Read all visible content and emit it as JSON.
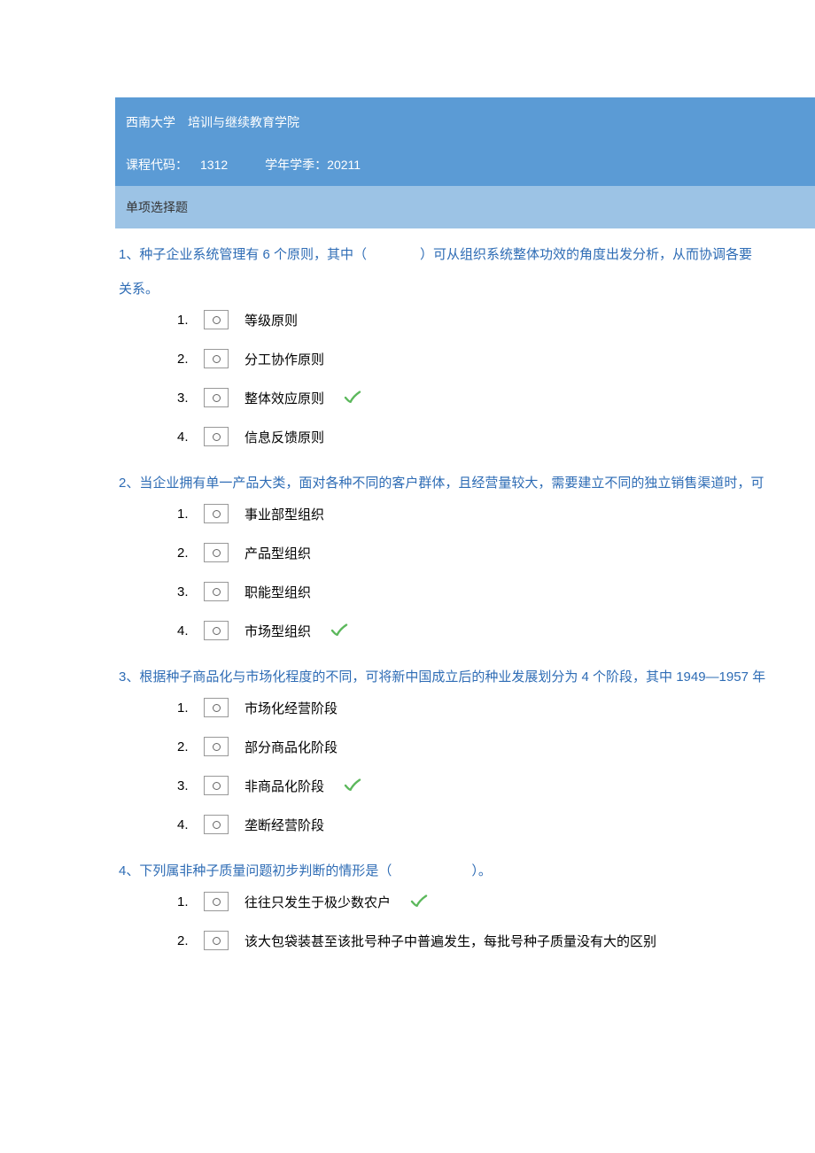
{
  "header": {
    "institution": "西南大学　培训与继续教育学院",
    "course_code_label": "课程代码：",
    "course_code_value": "1312",
    "term_label": "学年学季：",
    "term_value": "20211",
    "section_title": "单项选择题"
  },
  "questions": [
    {
      "text": "1、种子企业系统管理有 6 个原则，其中（　　　　）可从组织系统整体功效的角度出发分析，从而协调各要",
      "text2": "关系。",
      "options": [
        {
          "num": "1.",
          "label": "等级原则",
          "correct": false
        },
        {
          "num": "2.",
          "label": "分工协作原则",
          "correct": false
        },
        {
          "num": "3.",
          "label": "整体效应原则",
          "correct": true
        },
        {
          "num": "4.",
          "label": "信息反馈原则",
          "correct": false
        }
      ]
    },
    {
      "text": "2、当企业拥有单一产品大类，面对各种不同的客户群体，且经营量较大，需要建立不同的独立销售渠道时，可",
      "text2": "",
      "options": [
        {
          "num": "1.",
          "label": "事业部型组织",
          "correct": false
        },
        {
          "num": "2.",
          "label": "产品型组织",
          "correct": false
        },
        {
          "num": "3.",
          "label": "职能型组织",
          "correct": false
        },
        {
          "num": "4.",
          "label": "市场型组织",
          "correct": true
        }
      ]
    },
    {
      "text": "3、根据种子商品化与市场化程度的不同，可将新中国成立后的种业发展划分为 4 个阶段，其中 1949—1957 年",
      "text2": "",
      "options": [
        {
          "num": "1.",
          "label": "市场化经营阶段",
          "correct": false
        },
        {
          "num": "2.",
          "label": "部分商品化阶段",
          "correct": false
        },
        {
          "num": "3.",
          "label": "非商品化阶段",
          "correct": true
        },
        {
          "num": "4.",
          "label": "垄断经营阶段",
          "correct": false
        }
      ]
    },
    {
      "text": "4、下列属非种子质量问题初步判断的情形是（　　　　　　）。",
      "text2": "",
      "options": [
        {
          "num": "1.",
          "label": "往往只发生于极少数农户",
          "correct": true
        },
        {
          "num": "2.",
          "label": "该大包袋装甚至该批号种子中普遍发生，每批号种子质量没有大的区别",
          "correct": false
        }
      ]
    }
  ]
}
